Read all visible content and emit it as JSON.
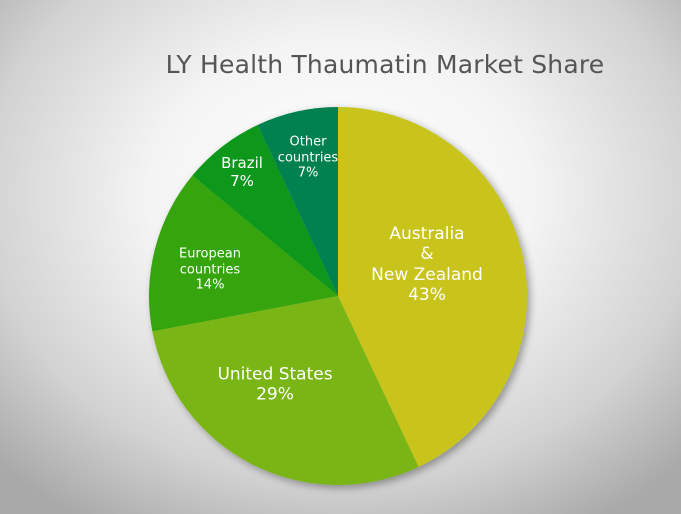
{
  "chart_data": {
    "type": "pie",
    "title": "LY Health Thaumatin Market Share",
    "start": "top",
    "direction": "clockwise",
    "slices": [
      {
        "name": "Australia & New Zealand",
        "value": 43,
        "label_lines": [
          "Australia",
          "&",
          "New Zealand",
          "43%"
        ],
        "color": "#c8c41c"
      },
      {
        "name": "United States",
        "value": 29,
        "label_lines": [
          "United States",
          "29%"
        ],
        "color": "#7ab514"
      },
      {
        "name": "European countries",
        "value": 14,
        "label_lines": [
          "European",
          "countries",
          "14%"
        ],
        "color": "#36a40f"
      },
      {
        "name": "Brazil",
        "value": 7,
        "label_lines": [
          "Brazil",
          "7%"
        ],
        "color": "#0c981c"
      },
      {
        "name": "Other countries",
        "value": 7,
        "label_lines": [
          "Other",
          "countries",
          "7%"
        ],
        "color": "#008150"
      }
    ]
  }
}
